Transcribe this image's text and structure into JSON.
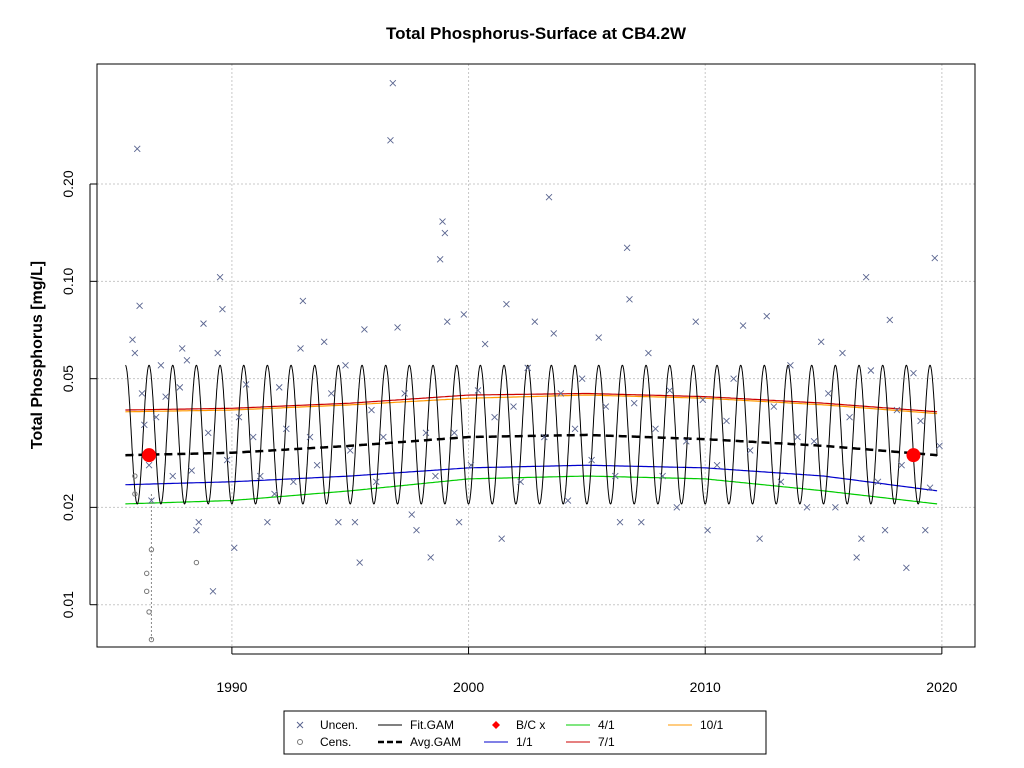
{
  "chart_data": {
    "type": "scatter",
    "title": "Total Phosphorus-Surface at CB4.2W",
    "xlabel": "",
    "ylabel": "Total Phosphorus [mg/L]",
    "y_scale": "log",
    "xlim": [
      1984.3,
      2021.4
    ],
    "ylim": [
      0.0074,
      0.47
    ],
    "x_ticks": [
      1990,
      2000,
      2010,
      2020
    ],
    "x_tick_labels": [
      "1990",
      "2000",
      "2010",
      "2020"
    ],
    "y_ticks": [
      0.01,
      0.02,
      0.05,
      0.1,
      0.2
    ],
    "y_tick_labels": [
      "0.01",
      "0.02",
      "0.05",
      "0.10",
      "0.20"
    ],
    "grid": true,
    "legend_placement": "bottom (below plot)",
    "colors": {
      "points": "#5a6590",
      "fit_gam": "#000000",
      "avg_gam": "#000000",
      "bc": "#ff0000",
      "s1_1": "#0000cc",
      "s4_1": "#00cc00",
      "s7_1": "#cc0000",
      "s10_1": "#ff9900"
    },
    "legend": [
      {
        "label": "Uncen.",
        "symbol": "x-mark"
      },
      {
        "label": "Fit.GAM",
        "symbol": "solid-line"
      },
      {
        "label": "B/C x",
        "symbol": "red-diamond"
      },
      {
        "label": "4/1",
        "symbol": "green-line"
      },
      {
        "label": "10/1",
        "symbol": "orange-line"
      },
      {
        "label": "Cens.",
        "symbol": "open-circle"
      },
      {
        "label": "Avg.GAM",
        "symbol": "dashed-line"
      },
      {
        "label": "1/1",
        "symbol": "blue-line"
      },
      {
        "label": "7/1",
        "symbol": "red-line"
      }
    ],
    "seasonal_lines": [
      {
        "name": "1/1",
        "x": [
          1985.5,
          1990,
          1995,
          2000,
          2005,
          2010,
          2015,
          2019.8
        ],
        "y": [
          0.0235,
          0.024,
          0.025,
          0.0265,
          0.027,
          0.0265,
          0.025,
          0.0225
        ]
      },
      {
        "name": "4/1",
        "x": [
          1985.5,
          1990,
          1995,
          2000,
          2005,
          2010,
          2015,
          2019.8
        ],
        "y": [
          0.0205,
          0.021,
          0.0225,
          0.0245,
          0.025,
          0.0245,
          0.0225,
          0.0205
        ]
      },
      {
        "name": "7/1",
        "x": [
          1985.5,
          1990,
          1995,
          2000,
          2005,
          2010,
          2015,
          2019.8
        ],
        "y": [
          0.04,
          0.0405,
          0.042,
          0.0445,
          0.045,
          0.044,
          0.042,
          0.0395
        ]
      },
      {
        "name": "10/1",
        "x": [
          1985.5,
          1990,
          1995,
          2000,
          2005,
          2010,
          2015,
          2019.8
        ],
        "y": [
          0.0395,
          0.04,
          0.0415,
          0.0435,
          0.0445,
          0.0435,
          0.0415,
          0.039
        ]
      }
    ],
    "avg_gam": {
      "x": [
        1985.5,
        1990,
        1995,
        2000,
        2005,
        2010,
        2015,
        2019.8
      ],
      "y": [
        0.029,
        0.0295,
        0.031,
        0.033,
        0.0335,
        0.0325,
        0.031,
        0.029
      ]
    },
    "fit_gam": {
      "year_start": 1985.5,
      "year_end": 2019.8,
      "seasonal_high": 0.055,
      "seasonal_low": 0.0205,
      "peak_day_fraction": 0.5
    },
    "bc_points": [
      {
        "x": 1986.5,
        "y": 0.029
      },
      {
        "x": 2018.8,
        "y": 0.029
      }
    ],
    "uncensored": [
      [
        1985.8,
        0.066
      ],
      [
        1985.9,
        0.06
      ],
      [
        1986.0,
        0.257
      ],
      [
        1986.1,
        0.084
      ],
      [
        1986.2,
        0.045
      ],
      [
        1986.3,
        0.036
      ],
      [
        1986.5,
        0.027
      ],
      [
        1986.6,
        0.021
      ],
      [
        1986.8,
        0.038
      ],
      [
        1987.0,
        0.055
      ],
      [
        1987.2,
        0.044
      ],
      [
        1987.5,
        0.025
      ],
      [
        1987.8,
        0.047
      ],
      [
        1987.9,
        0.062
      ],
      [
        1988.1,
        0.057
      ],
      [
        1988.3,
        0.026
      ],
      [
        1988.5,
        0.017
      ],
      [
        1988.6,
        0.018
      ],
      [
        1988.8,
        0.074
      ],
      [
        1989.0,
        0.034
      ],
      [
        1989.2,
        0.011
      ],
      [
        1989.4,
        0.06
      ],
      [
        1989.5,
        0.103
      ],
      [
        1989.6,
        0.082
      ],
      [
        1989.8,
        0.028
      ],
      [
        1990.1,
        0.015
      ],
      [
        1990.3,
        0.038
      ],
      [
        1990.6,
        0.048
      ],
      [
        1990.9,
        0.033
      ],
      [
        1991.2,
        0.025
      ],
      [
        1991.5,
        0.018
      ],
      [
        1991.8,
        0.022
      ],
      [
        1992.0,
        0.047
      ],
      [
        1992.3,
        0.035
      ],
      [
        1992.6,
        0.024
      ],
      [
        1992.9,
        0.062
      ],
      [
        1993.0,
        0.087
      ],
      [
        1993.3,
        0.033
      ],
      [
        1993.6,
        0.027
      ],
      [
        1993.9,
        0.065
      ],
      [
        1994.2,
        0.045
      ],
      [
        1994.5,
        0.018
      ],
      [
        1994.8,
        0.055
      ],
      [
        1995.0,
        0.03
      ],
      [
        1995.2,
        0.018
      ],
      [
        1995.4,
        0.0135
      ],
      [
        1995.6,
        0.071
      ],
      [
        1995.9,
        0.04
      ],
      [
        1996.1,
        0.024
      ],
      [
        1996.4,
        0.033
      ],
      [
        1996.7,
        0.273
      ],
      [
        1996.8,
        0.41
      ],
      [
        1997.0,
        0.072
      ],
      [
        1997.3,
        0.045
      ],
      [
        1997.6,
        0.019
      ],
      [
        1997.8,
        0.017
      ],
      [
        1998.2,
        0.034
      ],
      [
        1998.4,
        0.014
      ],
      [
        1998.6,
        0.025
      ],
      [
        1998.8,
        0.117
      ],
      [
        1998.9,
        0.153
      ],
      [
        1999.0,
        0.141
      ],
      [
        1999.1,
        0.075
      ],
      [
        1999.4,
        0.034
      ],
      [
        1999.6,
        0.018
      ],
      [
        1999.8,
        0.079
      ],
      [
        2000.1,
        0.027
      ],
      [
        2000.4,
        0.046
      ],
      [
        2000.7,
        0.064
      ],
      [
        2001.1,
        0.038
      ],
      [
        2001.4,
        0.016
      ],
      [
        2001.6,
        0.085
      ],
      [
        2001.9,
        0.041
      ],
      [
        2002.2,
        0.024
      ],
      [
        2002.5,
        0.054
      ],
      [
        2002.8,
        0.075
      ],
      [
        2003.2,
        0.033
      ],
      [
        2003.4,
        0.182
      ],
      [
        2003.6,
        0.069
      ],
      [
        2003.9,
        0.045
      ],
      [
        2004.2,
        0.021
      ],
      [
        2004.5,
        0.035
      ],
      [
        2004.8,
        0.05
      ],
      [
        2005.2,
        0.028
      ],
      [
        2005.5,
        0.067
      ],
      [
        2005.8,
        0.041
      ],
      [
        2006.2,
        0.025
      ],
      [
        2006.4,
        0.018
      ],
      [
        2006.7,
        0.127
      ],
      [
        2006.8,
        0.088
      ],
      [
        2007.0,
        0.042
      ],
      [
        2007.3,
        0.018
      ],
      [
        2007.6,
        0.06
      ],
      [
        2007.9,
        0.035
      ],
      [
        2008.2,
        0.025
      ],
      [
        2008.5,
        0.046
      ],
      [
        2008.8,
        0.02
      ],
      [
        2009.2,
        0.032
      ],
      [
        2009.6,
        0.075
      ],
      [
        2009.9,
        0.043
      ],
      [
        2010.1,
        0.017
      ],
      [
        2010.5,
        0.027
      ],
      [
        2010.9,
        0.037
      ],
      [
        2011.2,
        0.05
      ],
      [
        2011.6,
        0.073
      ],
      [
        2011.9,
        0.03
      ],
      [
        2012.3,
        0.016
      ],
      [
        2012.6,
        0.078
      ],
      [
        2012.9,
        0.041
      ],
      [
        2013.2,
        0.024
      ],
      [
        2013.6,
        0.055
      ],
      [
        2013.9,
        0.033
      ],
      [
        2014.3,
        0.02
      ],
      [
        2014.6,
        0.032
      ],
      [
        2014.9,
        0.065
      ],
      [
        2015.2,
        0.045
      ],
      [
        2015.5,
        0.02
      ],
      [
        2015.8,
        0.06
      ],
      [
        2016.1,
        0.038
      ],
      [
        2016.4,
        0.014
      ],
      [
        2016.6,
        0.016
      ],
      [
        2016.8,
        0.103
      ],
      [
        2017.0,
        0.053
      ],
      [
        2017.3,
        0.024
      ],
      [
        2017.6,
        0.017
      ],
      [
        2017.8,
        0.076
      ],
      [
        2018.1,
        0.04
      ],
      [
        2018.3,
        0.027
      ],
      [
        2018.5,
        0.013
      ],
      [
        2018.8,
        0.052
      ],
      [
        2019.1,
        0.037
      ],
      [
        2019.3,
        0.017
      ],
      [
        2019.5,
        0.023
      ],
      [
        2019.7,
        0.118
      ],
      [
        2019.9,
        0.031
      ]
    ],
    "censored": [
      [
        1986.4,
        0.0125
      ],
      [
        1986.4,
        0.011
      ],
      [
        1986.5,
        0.0095
      ],
      [
        1986.6,
        0.0078
      ],
      [
        1986.6,
        0.0148
      ],
      [
        1988.5,
        0.0135
      ],
      [
        1985.9,
        0.025
      ],
      [
        1985.9,
        0.022
      ]
    ]
  }
}
